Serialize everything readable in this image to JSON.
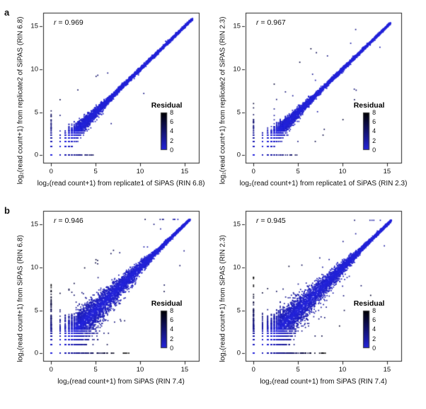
{
  "figure": {
    "background": "#ffffff",
    "panel_labels": [
      "a",
      "b"
    ]
  },
  "chart_data": [
    {
      "type": "scatter",
      "panel": "a",
      "stat_label": "r",
      "stat_value": "= 0.969",
      "xlabel": "log₂(read count+1) from replicate1 of SiPAS (RIN 6.8)",
      "ylabel": "log₂(read count+1) from replicate2 of SiPAS (RIN 6.8)",
      "xticks": [
        0,
        5,
        10,
        15
      ],
      "yticks": [
        0,
        5,
        10,
        15
      ],
      "xlim": [
        -0.9,
        16.6
      ],
      "ylim": [
        -0.9,
        16.6
      ],
      "point_color_low": "#2424dd",
      "point_color_high": "#000000",
      "legend": {
        "title": "Residual",
        "ticks": [
          8,
          6,
          4,
          2,
          0
        ],
        "min": 0,
        "max": 8
      },
      "point_cloud": {
        "n": 6500,
        "max": 15.9,
        "pow": 2.2,
        "tight_above": 7,
        "spread": 1.0,
        "outlier_frac": 0.004,
        "axis_frac": 0.028,
        "axis_max": 6,
        "seed": 11
      }
    },
    {
      "type": "scatter",
      "panel": "a",
      "stat_label": "r",
      "stat_value": "= 0.967",
      "xlabel": "log₂(read count+1) from replicate1 of SiPAS (RIN 2.3)",
      "ylabel": "log₂(read count+1) from replicate2 of SiPAS (RIN 2.3)",
      "xticks": [
        0,
        5,
        10,
        15
      ],
      "yticks": [
        0,
        5,
        10,
        15
      ],
      "xlim": [
        -0.9,
        16.6
      ],
      "ylim": [
        -0.9,
        16.6
      ],
      "point_color_low": "#2424dd",
      "point_color_high": "#000000",
      "legend": {
        "title": "Residual",
        "ticks": [
          8,
          6,
          4,
          2,
          0
        ],
        "min": 0,
        "max": 8
      },
      "point_cloud": {
        "n": 6500,
        "max": 15.4,
        "pow": 2.2,
        "tight_above": 7,
        "spread": 1.05,
        "outlier_frac": 0.006,
        "axis_frac": 0.03,
        "axis_max": 6,
        "seed": 22
      }
    },
    {
      "type": "scatter",
      "panel": "b",
      "stat_label": "r",
      "stat_value": "= 0.946",
      "xlabel": "log₂(read count+1) from SiPAS (RIN 7.4)",
      "ylabel": "log₂(read count+1) from SiPAS (RIN 6.8)",
      "xticks": [
        0,
        5,
        10,
        15
      ],
      "yticks": [
        0,
        5,
        10,
        15
      ],
      "xlim": [
        -0.9,
        16.6
      ],
      "ylim": [
        -0.9,
        16.6
      ],
      "point_color_low": "#2424dd",
      "point_color_high": "#000000",
      "legend": {
        "title": "Residual",
        "ticks": [
          8,
          6,
          4,
          2,
          0
        ],
        "min": 0,
        "max": 8
      },
      "point_cloud": {
        "n": 7600,
        "max": 15.6,
        "pow": 1.9,
        "tight_above": 12,
        "spread": 2.2,
        "outlier_frac": 0.01,
        "axis_frac": 0.034,
        "axis_max": 9.5,
        "seed": 33
      }
    },
    {
      "type": "scatter",
      "panel": "b",
      "stat_label": "r",
      "stat_value": "= 0.945",
      "xlabel": "log₂(read count+1) from SiPAS (RIN 7.4)",
      "ylabel": "log₂(read count+1) from SiPAS (RIN 2.3)",
      "xticks": [
        0,
        5,
        10,
        15
      ],
      "yticks": [
        0,
        5,
        10,
        15
      ],
      "xlim": [
        -0.9,
        16.6
      ],
      "ylim": [
        -0.9,
        16.6
      ],
      "point_color_low": "#2424dd",
      "point_color_high": "#000000",
      "legend": {
        "title": "Residual",
        "ticks": [
          8,
          6,
          4,
          2,
          0
        ],
        "min": 0,
        "max": 8
      },
      "point_cloud": {
        "n": 7600,
        "max": 15.5,
        "pow": 1.9,
        "tight_above": 12,
        "spread": 2.3,
        "outlier_frac": 0.011,
        "axis_frac": 0.034,
        "axis_max": 9.5,
        "seed": 44
      }
    }
  ]
}
